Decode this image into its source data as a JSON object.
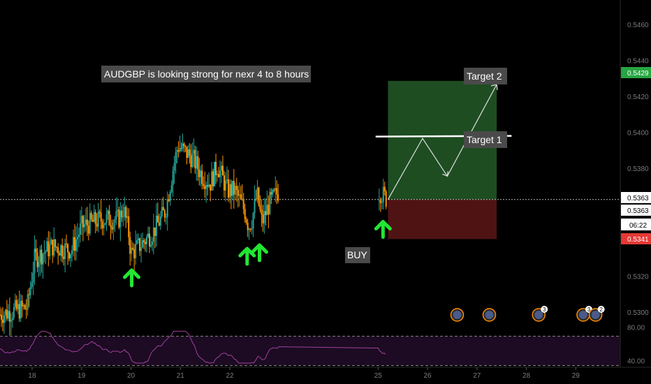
{
  "chart_data": {
    "type": "candlestick",
    "symbol_pair": "AUDGBP",
    "title": "",
    "annotation": "AUDGBP is looking strong for nexr 4 to 8 hours",
    "labels": {
      "buy": "BUY",
      "target1": "Target 1",
      "target2": "Target 2"
    },
    "price_axis": {
      "ylim": [
        0.5293,
        0.5474
      ],
      "ticks": [
        "0.5460",
        "0.5440",
        "0.5420",
        "0.5400",
        "0.5380",
        "0.5320",
        "0.5300"
      ],
      "tick_values": [
        0.546,
        0.544,
        0.542,
        0.54,
        0.538,
        0.532,
        0.53
      ]
    },
    "time_axis": {
      "ticks": [
        "18",
        "19",
        "20",
        "21",
        "22",
        "25",
        "26",
        "27",
        "28",
        "29"
      ],
      "tick_days": [
        18,
        19,
        20,
        21,
        22,
        25,
        26,
        27,
        28,
        29
      ],
      "xlim_day": [
        17.35,
        29.9
      ]
    },
    "price_badges": {
      "target_price": "0.5429",
      "current_price": "0.5363",
      "last_price": "0.5363",
      "countdown": "06:22",
      "stop_price": "0.5341"
    },
    "trade_setup": {
      "entry": 0.5363,
      "stop": 0.5341,
      "target_1": 0.5398,
      "target_2": 0.5429,
      "start_day": 25.2,
      "end_day": 27.4
    },
    "projection_path": {
      "day": [
        25.2,
        25.9,
        26.4,
        27.4
      ],
      "price": [
        0.5363,
        0.5397,
        0.5376,
        0.5427
      ]
    },
    "buy_signals_day": [
      20.0,
      22.35,
      22.6,
      25.1
    ],
    "event_markers": [
      {
        "day": 26.6,
        "count": ""
      },
      {
        "day": 27.25,
        "count": ""
      },
      {
        "day": 28.25,
        "count": "3"
      },
      {
        "day": 29.15,
        "count": "3"
      },
      {
        "day": 29.4,
        "count": "2"
      }
    ],
    "rsi": {
      "ticks": [
        "80.00",
        "40.00"
      ],
      "ylim": [
        33,
        83
      ],
      "upper": 70,
      "lower": 35
    },
    "colors": {
      "up": "#26a69a",
      "down": "#ff9800",
      "profit_zone": "#1e4d22",
      "loss_zone": "#4f1313",
      "target_badge": "#26a641",
      "stop_badge": "#e53935",
      "arrow": "#22e633",
      "rsi_line": "#a13fa0",
      "rsi_band": "#1c0b22"
    }
  }
}
